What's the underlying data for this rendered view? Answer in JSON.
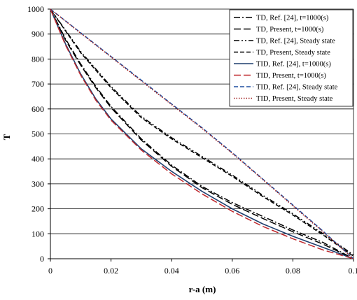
{
  "chart_data": {
    "type": "line",
    "title": "",
    "xlabel": "r-a (m)",
    "ylabel": "T",
    "xlim": [
      0,
      0.1
    ],
    "ylim": [
      0,
      1000
    ],
    "x_ticks": [
      "0",
      "0.02",
      "0.04",
      "0.06",
      "0.08",
      "0.1"
    ],
    "y_ticks": [
      "0",
      "100",
      "200",
      "300",
      "400",
      "500",
      "600",
      "700",
      "800",
      "900",
      "1000"
    ],
    "grid": "horizontal",
    "legend_position": "top-right",
    "series": [
      {
        "name": "TD, Ref. [24], t=1000(s)",
        "color": "#000000",
        "style": "dash-dot",
        "x": [
          0,
          0.005,
          0.01,
          0.015,
          0.02,
          0.03,
          0.04,
          0.05,
          0.06,
          0.07,
          0.08,
          0.09,
          0.1
        ],
        "y": [
          1000,
          880,
          780,
          690,
          610,
          480,
          375,
          290,
          225,
          170,
          115,
          65,
          0
        ]
      },
      {
        "name": "TD, Present, t=1000(s)",
        "color": "#000000",
        "style": "long-dash",
        "x": [
          0,
          0.005,
          0.01,
          0.015,
          0.02,
          0.03,
          0.04,
          0.05,
          0.06,
          0.07,
          0.08,
          0.09,
          0.1
        ],
        "y": [
          1000,
          875,
          775,
          685,
          605,
          475,
          370,
          285,
          218,
          162,
          108,
          58,
          0
        ]
      },
      {
        "name": "TD, Ref. [24], Steady state",
        "color": "#000000",
        "style": "dash-dot-dot",
        "x": [
          0,
          0.01,
          0.02,
          0.03,
          0.04,
          0.05,
          0.06,
          0.07,
          0.08,
          0.09,
          0.1
        ],
        "y": [
          1000,
          830,
          690,
          570,
          485,
          410,
          335,
          255,
          180,
          100,
          15
        ]
      },
      {
        "name": "TD, Present, Steady state",
        "color": "#000000",
        "style": "dash",
        "x": [
          0,
          0.01,
          0.02,
          0.03,
          0.04,
          0.05,
          0.06,
          0.07,
          0.08,
          0.09,
          0.1
        ],
        "y": [
          1000,
          825,
          685,
          565,
          480,
          405,
          330,
          250,
          175,
          95,
          10
        ]
      },
      {
        "name": "TID, Ref. [24], t=1000(s)",
        "color": "#1f3f6e",
        "style": "solid",
        "x": [
          0,
          0.005,
          0.01,
          0.015,
          0.02,
          0.03,
          0.04,
          0.05,
          0.06,
          0.07,
          0.08,
          0.09,
          0.1
        ],
        "y": [
          1000,
          860,
          740,
          640,
          560,
          440,
          350,
          270,
          200,
          140,
          90,
          45,
          0
        ]
      },
      {
        "name": "TID, Present, t=1000(s)",
        "color": "#c0282d",
        "style": "long-dash",
        "x": [
          0,
          0.005,
          0.01,
          0.015,
          0.02,
          0.03,
          0.04,
          0.05,
          0.06,
          0.07,
          0.08,
          0.09,
          0.1
        ],
        "y": [
          1000,
          855,
          735,
          635,
          555,
          435,
          340,
          260,
          190,
          130,
          80,
          35,
          0
        ]
      },
      {
        "name": "TID, Ref. [24], Steady state",
        "color": "#1f4fa0",
        "style": "dash",
        "x": [
          0,
          0.01,
          0.02,
          0.03,
          0.04,
          0.05,
          0.06,
          0.07,
          0.08,
          0.09,
          0.1
        ],
        "y": [
          1000,
          905,
          810,
          715,
          620,
          525,
          425,
          320,
          215,
          110,
          0
        ]
      },
      {
        "name": "TID, Present, Steady state",
        "color": "#a02020",
        "style": "dot",
        "x": [
          0,
          0.01,
          0.02,
          0.03,
          0.04,
          0.05,
          0.06,
          0.07,
          0.08,
          0.09,
          0.1
        ],
        "y": [
          1000,
          903,
          808,
          712,
          617,
          522,
          422,
          318,
          212,
          107,
          0
        ]
      }
    ]
  }
}
